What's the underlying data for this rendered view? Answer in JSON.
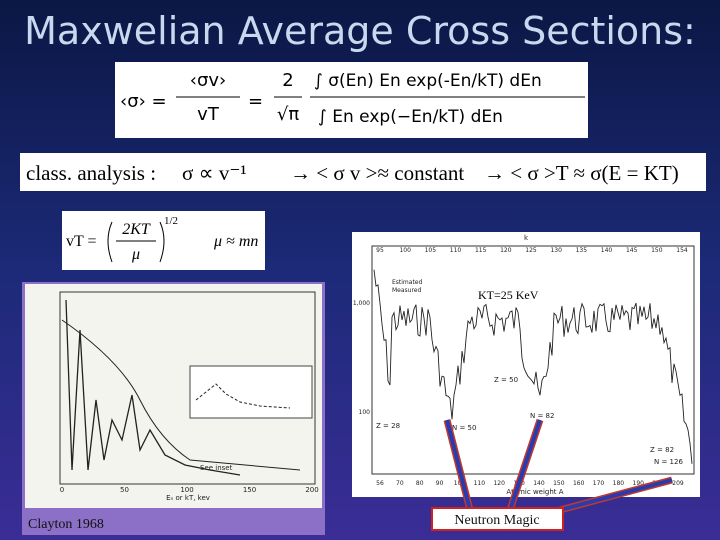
{
  "title": "Maxwelian Average Cross Sections:",
  "eq1": {
    "lhs": "‹σ› =",
    "frac1_num": "‹σv›",
    "frac1_den": "vT",
    "eq": "=",
    "frac2_num": "2",
    "frac2_den": "√π",
    "frac3_num": "∫ σ(En) En exp(-En/kT) dEn",
    "frac3_den": "∫ En exp(−En/kT) dEn"
  },
  "eq2": {
    "part1": "class. analysis :",
    "part2": "σ ∝ v⁻¹",
    "part3": "→ < σ v >≈ constant",
    "part4": "→ < σ >T ≈ σ(E = KT)"
  },
  "eq3": {
    "lhs": "vT =",
    "num": "2KT",
    "den": "μ",
    "exp": "1/2",
    "rhs": "μ ≈ mn"
  },
  "left_plot": {
    "caption": "Clayton 1968",
    "x_label": "Eₙ or kT, kev",
    "inset_note": "See inset",
    "xticks": [
      "0",
      "50",
      "100",
      "150",
      "200"
    ]
  },
  "right_plot": {
    "annotation": "KT=25 KeV",
    "legend": [
      "Estimated",
      "Measured"
    ],
    "top_label": "k",
    "bottom_ticks": [
      "56",
      "70",
      "80",
      "90",
      "100",
      "110",
      "120",
      "130",
      "140",
      "150",
      "160",
      "170",
      "180",
      "190",
      "200",
      "209"
    ],
    "top_ticks": [
      "95",
      "100",
      "105",
      "110",
      "115",
      "120",
      "125",
      "130",
      "135",
      "140",
      "145",
      "150",
      "154"
    ],
    "y_ticks": [
      "1,000",
      "100"
    ],
    "markers": [
      "Z = 28",
      "N = 50",
      "Z = 50",
      "N = 82",
      "Z = 82",
      "N = 126"
    ],
    "x_label": "Atomic weight A"
  },
  "callout": "Neutron Magic"
}
